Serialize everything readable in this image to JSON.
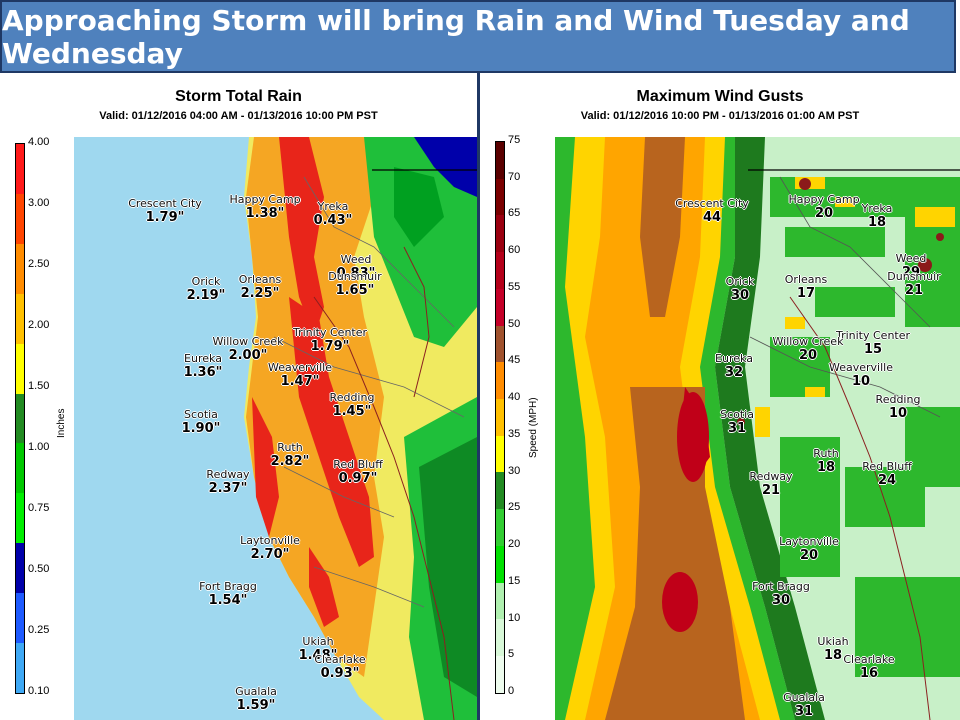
{
  "banner": {
    "title": "Approaching Storm will bring Rain and Wind Tuesday and Wednesday"
  },
  "rain_panel": {
    "title": "Storm Total Rain",
    "valid": "Valid: 01/12/2016 04:00 AM - 01/13/2016 10:00 PM PST",
    "unit": "Inches",
    "scale_ticks": [
      "4.00",
      "3.00",
      "2.50",
      "2.00",
      "1.50",
      "1.00",
      "0.75",
      "0.50",
      "0.25",
      "0.10"
    ],
    "scale_colors": [
      "#ff1a1a",
      "#ff4500",
      "#ff8c00",
      "#ffc000",
      "#ffff00",
      "#228b22",
      "#00c800",
      "#00ee00",
      "#0000aa",
      "#1e5aff",
      "#3fa9f5"
    ],
    "cities": [
      {
        "name": "Crescent City",
        "value": "1.79\""
      },
      {
        "name": "Happy Camp",
        "value": "1.38\""
      },
      {
        "name": "Yreka",
        "value": "0.43\""
      },
      {
        "name": "Weed",
        "value": "0.83\""
      },
      {
        "name": "Dunsmuir",
        "value": "1.65\""
      },
      {
        "name": "Orick",
        "value": "2.19\""
      },
      {
        "name": "Orleans",
        "value": "2.25\""
      },
      {
        "name": "Trinity Center",
        "value": "1.79\""
      },
      {
        "name": "Willow Creek",
        "value": "2.00\""
      },
      {
        "name": "Eureka",
        "value": "1.36\""
      },
      {
        "name": "Weaverville",
        "value": "1.47\""
      },
      {
        "name": "Redding",
        "value": "1.45\""
      },
      {
        "name": "Scotia",
        "value": "1.90\""
      },
      {
        "name": "Ruth",
        "value": "2.82\""
      },
      {
        "name": "Red Bluff",
        "value": "0.97\""
      },
      {
        "name": "Redway",
        "value": "2.37\""
      },
      {
        "name": "Laytonville",
        "value": "2.70\""
      },
      {
        "name": "Fort Bragg",
        "value": "1.54\""
      },
      {
        "name": "Ukiah",
        "value": "1.48\""
      },
      {
        "name": "Clearlake",
        "value": "0.93\""
      },
      {
        "name": "Gualala",
        "value": "1.59\""
      }
    ]
  },
  "wind_panel": {
    "title": "Maximum Wind Gusts",
    "valid": "Valid: 01/12/2016 10:00 PM - 01/13/2016 01:00 AM PST",
    "unit": "Speed (MPH)",
    "scale_ticks": [
      "75",
      "70",
      "65",
      "60",
      "55",
      "50",
      "45",
      "40",
      "35",
      "30",
      "25",
      "20",
      "15",
      "10",
      "5",
      "0"
    ],
    "scale_colors": [
      "#5a0000",
      "#7a0000",
      "#9a0010",
      "#b4001a",
      "#c40028",
      "#a0522d",
      "#ff8c00",
      "#ffc000",
      "#ffff00",
      "#228b22",
      "#32cd32",
      "#00e000",
      "#b0f0b0",
      "#d8f8d8",
      "#eefcee"
    ],
    "cities": [
      {
        "name": "Crescent City",
        "value": "44"
      },
      {
        "name": "Happy Camp",
        "value": "20"
      },
      {
        "name": "Yreka",
        "value": "18"
      },
      {
        "name": "Weed",
        "value": "29"
      },
      {
        "name": "Dunsmuir",
        "value": "21"
      },
      {
        "name": "Orick",
        "value": "30"
      },
      {
        "name": "Orleans",
        "value": "17"
      },
      {
        "name": "Trinity Center",
        "value": "15"
      },
      {
        "name": "Willow Creek",
        "value": "20"
      },
      {
        "name": "Eureka",
        "value": "32"
      },
      {
        "name": "Weaverville",
        "value": "10"
      },
      {
        "name": "Redding",
        "value": "10"
      },
      {
        "name": "Scotia",
        "value": "31"
      },
      {
        "name": "Ruth",
        "value": "18"
      },
      {
        "name": "Red Bluff",
        "value": "24"
      },
      {
        "name": "Redway",
        "value": "21"
      },
      {
        "name": "Laytonville",
        "value": "20"
      },
      {
        "name": "Fort Bragg",
        "value": "30"
      },
      {
        "name": "Ukiah",
        "value": "18"
      },
      {
        "name": "Clearlake",
        "value": "16"
      },
      {
        "name": "Gualala",
        "value": "31"
      }
    ]
  }
}
